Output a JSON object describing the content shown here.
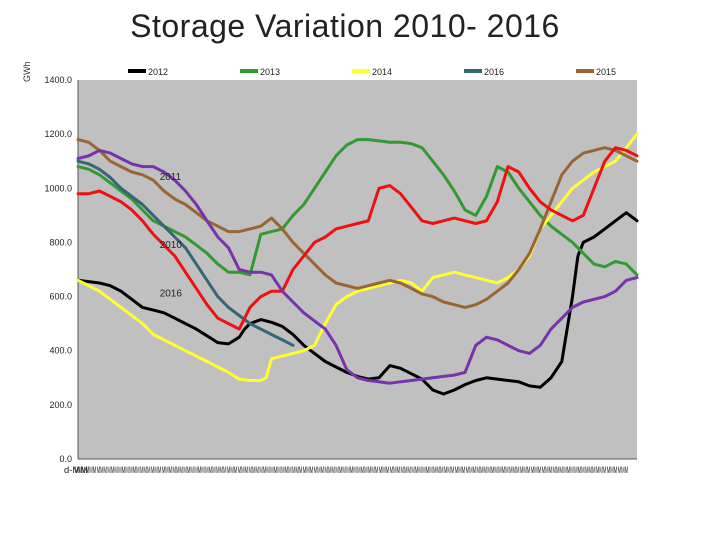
{
  "page": {
    "title": "Storage  Variation  2010- 2016",
    "ylabel": "GWh"
  },
  "chart_data": {
    "type": "line",
    "title": "Storage  Variation  2010- 2016",
    "ylabel": "GWh",
    "xlabel": "",
    "ylim": [
      0,
      1400
    ],
    "xlim": [
      0,
      52
    ],
    "grid": false,
    "legend_position": "top",
    "plot_background": "#c0c0c0",
    "yticks": [
      "0.0",
      "200.0",
      "400.0",
      "600.0",
      "800.0",
      "1000.0",
      "1200.0",
      "1400.0"
    ],
    "yticks_values": [
      0,
      200,
      400,
      600,
      800,
      1000,
      1200,
      1400
    ],
    "xtick_labels": [
      "d-MM",
      "MMM",
      "MMM",
      "MMM",
      "MMM",
      "MMM",
      "MMM",
      "MMM",
      "MMM",
      "MMM",
      "MMM",
      "MMM",
      "MMM",
      "MMM",
      "MMM",
      "MMM",
      "MMM",
      "MMM",
      "MMM",
      "MMM",
      "MMM",
      "MMM",
      "MMM",
      "MMM",
      "MMM",
      "MMM",
      "MMM",
      "MMM",
      "MMM",
      "MMM",
      "MMM",
      "MMM",
      "MMM",
      "MMM",
      "MMM",
      "MMM",
      "MMM",
      "MMM",
      "MMM",
      "MMM",
      "MMM",
      "MMM",
      "MMM",
      "MMM",
      "MMM",
      "MMM",
      "MMM",
      "MMM",
      "MMM",
      "MMM",
      "MMM",
      "MMM"
    ],
    "annotations": [
      {
        "text": "2011",
        "x": 7.6,
        "y": 1030
      },
      {
        "text": "2010",
        "x": 7.6,
        "y": 780
      },
      {
        "text": "2016",
        "x": 7.6,
        "y": 600
      }
    ],
    "series": [
      {
        "name": "2012",
        "color": "#000000",
        "x": [
          0,
          2,
          3,
          4,
          5,
          6,
          7,
          8,
          9,
          10,
          11,
          12,
          13,
          14,
          15,
          15.5,
          16,
          17,
          18,
          19,
          20,
          21,
          22,
          23,
          24,
          25,
          26,
          27,
          28,
          29,
          30,
          31,
          32,
          33,
          34,
          35,
          36,
          37,
          38,
          39,
          40,
          41,
          42,
          43,
          44,
          45,
          45.5,
          46,
          46.5,
          47,
          48,
          49,
          50,
          51,
          52
        ],
        "y": [
          660,
          650,
          640,
          620,
          590,
          560,
          550,
          540,
          520,
          500,
          480,
          455,
          430,
          425,
          450,
          480,
          500,
          515,
          505,
          490,
          460,
          420,
          390,
          360,
          340,
          320,
          305,
          295,
          300,
          345,
          335,
          315,
          295,
          255,
          240,
          255,
          275,
          290,
          300,
          295,
          290,
          285,
          270,
          265,
          300,
          360,
          480,
          600,
          750,
          800,
          820,
          850,
          880,
          910,
          880
        ]
      },
      {
        "name": "2013",
        "color": "#339933",
        "x": [
          0,
          1,
          2,
          3,
          4,
          5,
          6,
          7,
          8,
          9,
          10,
          11,
          12,
          13,
          14,
          15,
          16,
          17,
          18,
          19,
          20,
          21,
          22,
          23,
          24,
          25,
          26,
          27,
          28,
          29,
          30,
          31,
          32,
          33,
          34,
          35,
          36,
          37,
          38,
          39,
          40,
          41,
          42,
          43,
          44,
          45,
          46,
          47,
          48,
          49,
          50,
          51,
          52
        ],
        "y": [
          1080,
          1070,
          1050,
          1020,
          990,
          960,
          920,
          880,
          860,
          840,
          820,
          790,
          760,
          720,
          690,
          690,
          680,
          830,
          840,
          850,
          900,
          940,
          1000,
          1060,
          1120,
          1160,
          1180,
          1180,
          1175,
          1170,
          1170,
          1165,
          1150,
          1100,
          1050,
          990,
          920,
          900,
          970,
          1080,
          1060,
          1000,
          950,
          900,
          860,
          830,
          800,
          760,
          720,
          710,
          730,
          720,
          680
        ]
      },
      {
        "name": "2014",
        "color": "#ffff33",
        "x": [
          0,
          1,
          2,
          3,
          4,
          5,
          6,
          7,
          8,
          9,
          10,
          11,
          12,
          13,
          14,
          15,
          16,
          17,
          17.5,
          18,
          19,
          20,
          21,
          22,
          23,
          24,
          25,
          26,
          27,
          28,
          29,
          30,
          31,
          32,
          33,
          34,
          35,
          36,
          37,
          38,
          39,
          40,
          41,
          42,
          43,
          44,
          45,
          46,
          47,
          48,
          49,
          50,
          51,
          52
        ],
        "y": [
          660,
          640,
          620,
          590,
          560,
          530,
          500,
          460,
          440,
          420,
          400,
          380,
          360,
          340,
          320,
          295,
          290,
          290,
          300,
          370,
          380,
          390,
          400,
          420,
          500,
          570,
          600,
          620,
          630,
          640,
          650,
          660,
          650,
          620,
          670,
          680,
          690,
          680,
          670,
          660,
          650,
          670,
          700,
          750,
          850,
          900,
          950,
          1000,
          1030,
          1060,
          1080,
          1100,
          1150,
          1200
        ]
      },
      {
        "name": "2016",
        "color": "#336677",
        "x": [
          0,
          1,
          2,
          3,
          4,
          5,
          6,
          7,
          8,
          9,
          10,
          11,
          12,
          13,
          14,
          15,
          16,
          17,
          18,
          19,
          20
        ],
        "y": [
          1100,
          1090,
          1070,
          1040,
          1000,
          970,
          940,
          900,
          860,
          820,
          780,
          720,
          660,
          600,
          560,
          530,
          500,
          480,
          460,
          440,
          420
        ]
      },
      {
        "name": "2015",
        "color": "#996633",
        "x": [
          0,
          1,
          2,
          3,
          4,
          5,
          6,
          7,
          8,
          9,
          10,
          11,
          12,
          13,
          14,
          15,
          16,
          17,
          18,
          19,
          20,
          21,
          22,
          23,
          24,
          25,
          26,
          27,
          28,
          29,
          30,
          31,
          32,
          33,
          34,
          35,
          36,
          37,
          38,
          39,
          40,
          41,
          42,
          43,
          44,
          45,
          46,
          47,
          48,
          49,
          50,
          51,
          52
        ],
        "y": [
          1180,
          1170,
          1140,
          1100,
          1080,
          1060,
          1050,
          1030,
          990,
          960,
          940,
          910,
          880,
          860,
          840,
          840,
          850,
          860,
          890,
          850,
          800,
          760,
          720,
          680,
          650,
          640,
          630,
          640,
          650,
          660,
          650,
          630,
          610,
          600,
          580,
          570,
          560,
          570,
          590,
          620,
          650,
          700,
          760,
          850,
          950,
          1050,
          1100,
          1130,
          1140,
          1150,
          1140,
          1120,
          1100
        ]
      },
      {
        "name": "",
        "color": "#ee1111",
        "x": [
          0,
          1,
          2,
          3,
          4,
          5,
          6,
          7,
          8,
          9,
          10,
          11,
          12,
          13,
          14,
          15,
          16,
          17,
          18,
          19,
          20,
          21,
          22,
          23,
          24,
          25,
          26,
          27,
          28,
          29,
          30,
          31,
          32,
          33,
          34,
          35,
          36,
          37,
          38,
          39,
          40,
          41,
          42,
          43,
          44,
          45,
          46,
          47,
          48,
          49,
          50,
          51,
          52
        ],
        "y": [
          980,
          980,
          990,
          970,
          950,
          920,
          880,
          830,
          790,
          750,
          690,
          630,
          570,
          520,
          500,
          480,
          560,
          600,
          620,
          620,
          700,
          750,
          800,
          820,
          850,
          860,
          870,
          880,
          1000,
          1010,
          980,
          930,
          880,
          870,
          880,
          890,
          880,
          870,
          880,
          950,
          1080,
          1060,
          1000,
          950,
          920,
          900,
          880,
          900,
          1000,
          1100,
          1150,
          1140,
          1120
        ]
      },
      {
        "name": "",
        "color": "#7733aa",
        "x": [
          0,
          1,
          2,
          3,
          4,
          5,
          6,
          7,
          8,
          9,
          10,
          11,
          12,
          13,
          14,
          15,
          16,
          17,
          18,
          19,
          20,
          21,
          22,
          23,
          24,
          25,
          26,
          27,
          28,
          29,
          30,
          31,
          32,
          33,
          34,
          35,
          36,
          37,
          38,
          39,
          40,
          41,
          42,
          43,
          44,
          45,
          46,
          47,
          48,
          49,
          50,
          51,
          52
        ],
        "y": [
          1110,
          1120,
          1140,
          1130,
          1110,
          1090,
          1080,
          1080,
          1060,
          1030,
          990,
          940,
          880,
          820,
          780,
          700,
          690,
          690,
          680,
          620,
          580,
          540,
          510,
          480,
          420,
          330,
          300,
          290,
          285,
          280,
          285,
          290,
          295,
          300,
          305,
          310,
          320,
          420,
          450,
          440,
          420,
          400,
          390,
          420,
          480,
          520,
          560,
          580,
          590,
          600,
          620,
          660,
          670
        ]
      }
    ]
  },
  "legend": [
    {
      "label": "2012",
      "color": "#000000"
    },
    {
      "label": "2013",
      "color": "#339933"
    },
    {
      "label": "2014",
      "color": "#ffff33"
    },
    {
      "label": "2016",
      "color": "#336677"
    },
    {
      "label": "2015",
      "color": "#996633"
    }
  ]
}
